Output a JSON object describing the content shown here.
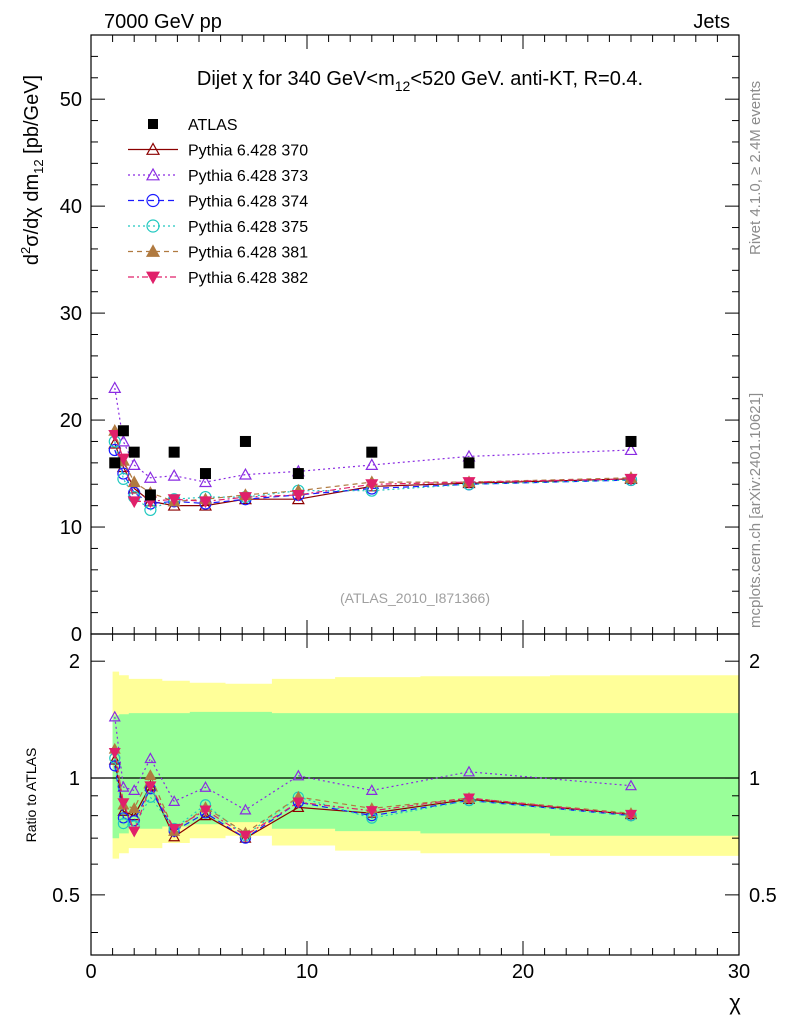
{
  "header": {
    "left": "7000 GeV pp",
    "right": "Jets",
    "side_top": "Rivet 4.1.0, ≥ 2.4M events",
    "side_bottom": "mcplots.cern.ch [arXiv:2401.10621]"
  },
  "title": {
    "part1": "Dijet ",
    "chi": "χ",
    "part2": " for 340 GeV<m",
    "sub": "12",
    "part3": "<520 GeV.  anti-KT, R=0.4."
  },
  "ylabel_main": {
    "d": "d",
    "sup": "2",
    "mid": "σ/dχ dm",
    "sub": "12",
    "units": " [pb/GeV]"
  },
  "ylabel_ratio": "Ratio to ATLAS",
  "xlabel": "χ",
  "watermark": "(ATLAS_2010_I871366)",
  "colors": {
    "data": "#000000",
    "s370": "#8b0000",
    "s373": "#8a2be2",
    "s374": "#1a1aff",
    "s375": "#20c8c0",
    "s381": "#b07a40",
    "s382": "#e0206a",
    "band_outer": "#ffff99",
    "band_inner": "#99ff99"
  },
  "chart_data": {
    "type": "scatter",
    "x": [
      1.1,
      1.5,
      2.0,
      2.75,
      3.85,
      5.3,
      7.15,
      9.6,
      13.0,
      17.5,
      25.0
    ],
    "x_range": [
      0,
      30
    ],
    "x_ticks": [
      "0",
      "10",
      "20",
      "30"
    ],
    "main": {
      "ylim": [
        0,
        56
      ],
      "y_ticks": [
        "0",
        "10",
        "20",
        "30",
        "40",
        "50"
      ]
    },
    "ratio": {
      "ylim": [
        0.35,
        2.35
      ],
      "y_ticks": [
        "0.5",
        "1",
        "2"
      ],
      "outer_band": [
        [
          0.62,
          1.88
        ],
        [
          0.64,
          1.84
        ],
        [
          0.66,
          1.8
        ],
        [
          0.66,
          1.8
        ],
        [
          0.68,
          1.78
        ],
        [
          0.7,
          1.76
        ],
        [
          0.71,
          1.75
        ],
        [
          0.67,
          1.8
        ],
        [
          0.65,
          1.82
        ],
        [
          0.64,
          1.83
        ],
        [
          0.63,
          1.84
        ]
      ],
      "inner_band": [
        [
          0.7,
          1.45
        ],
        [
          0.72,
          1.46
        ],
        [
          0.74,
          1.47
        ],
        [
          0.74,
          1.47
        ],
        [
          0.75,
          1.47
        ],
        [
          0.76,
          1.48
        ],
        [
          0.77,
          1.48
        ],
        [
          0.74,
          1.47
        ],
        [
          0.73,
          1.47
        ],
        [
          0.72,
          1.47
        ],
        [
          0.71,
          1.47
        ]
      ]
    },
    "data": {
      "name": "ATLAS",
      "values": [
        16.0,
        19.0,
        17.0,
        13.0,
        17.0,
        15.0,
        18.0,
        15.0,
        17.0,
        16.0,
        18.0
      ]
    },
    "series": [
      {
        "name": "Pythia 6.428 370",
        "key": "s370",
        "marker": "triangle-open",
        "dash": "",
        "values": [
          17.8,
          15.6,
          13.6,
          12.4,
          12.0,
          12.0,
          12.6,
          12.6,
          13.8,
          14.1,
          14.5
        ]
      },
      {
        "name": "Pythia 6.428 373",
        "key": "s373",
        "marker": "triangle-open",
        "dash": "2,3",
        "values": [
          23.0,
          18.0,
          15.8,
          14.6,
          14.8,
          14.2,
          14.9,
          15.2,
          15.8,
          16.6,
          17.2
        ]
      },
      {
        "name": "Pythia 6.428 374",
        "key": "s374",
        "marker": "circle-open",
        "dash": "6,4",
        "values": [
          17.2,
          15.0,
          13.2,
          12.2,
          12.4,
          12.2,
          12.6,
          13.0,
          13.6,
          14.0,
          14.4
        ]
      },
      {
        "name": "Pythia 6.428 375",
        "key": "s375",
        "marker": "circle-open",
        "dash": "2,3",
        "values": [
          18.0,
          14.5,
          12.8,
          11.6,
          12.6,
          12.8,
          12.8,
          13.4,
          13.4,
          14.0,
          14.4
        ]
      },
      {
        "name": "Pythia 6.428 381",
        "key": "s381",
        "marker": "triangle-filled",
        "dash": "5,4",
        "values": [
          19.0,
          16.2,
          14.2,
          13.2,
          12.4,
          12.6,
          13.0,
          13.4,
          14.2,
          14.2,
          14.6
        ]
      },
      {
        "name": "Pythia 6.428 382",
        "key": "s382",
        "marker": "triangle-down-filled",
        "dash": "6,3,2,3",
        "values": [
          18.6,
          16.4,
          12.4,
          12.4,
          12.6,
          12.4,
          12.8,
          13.0,
          14.0,
          14.2,
          14.5
        ]
      }
    ]
  }
}
